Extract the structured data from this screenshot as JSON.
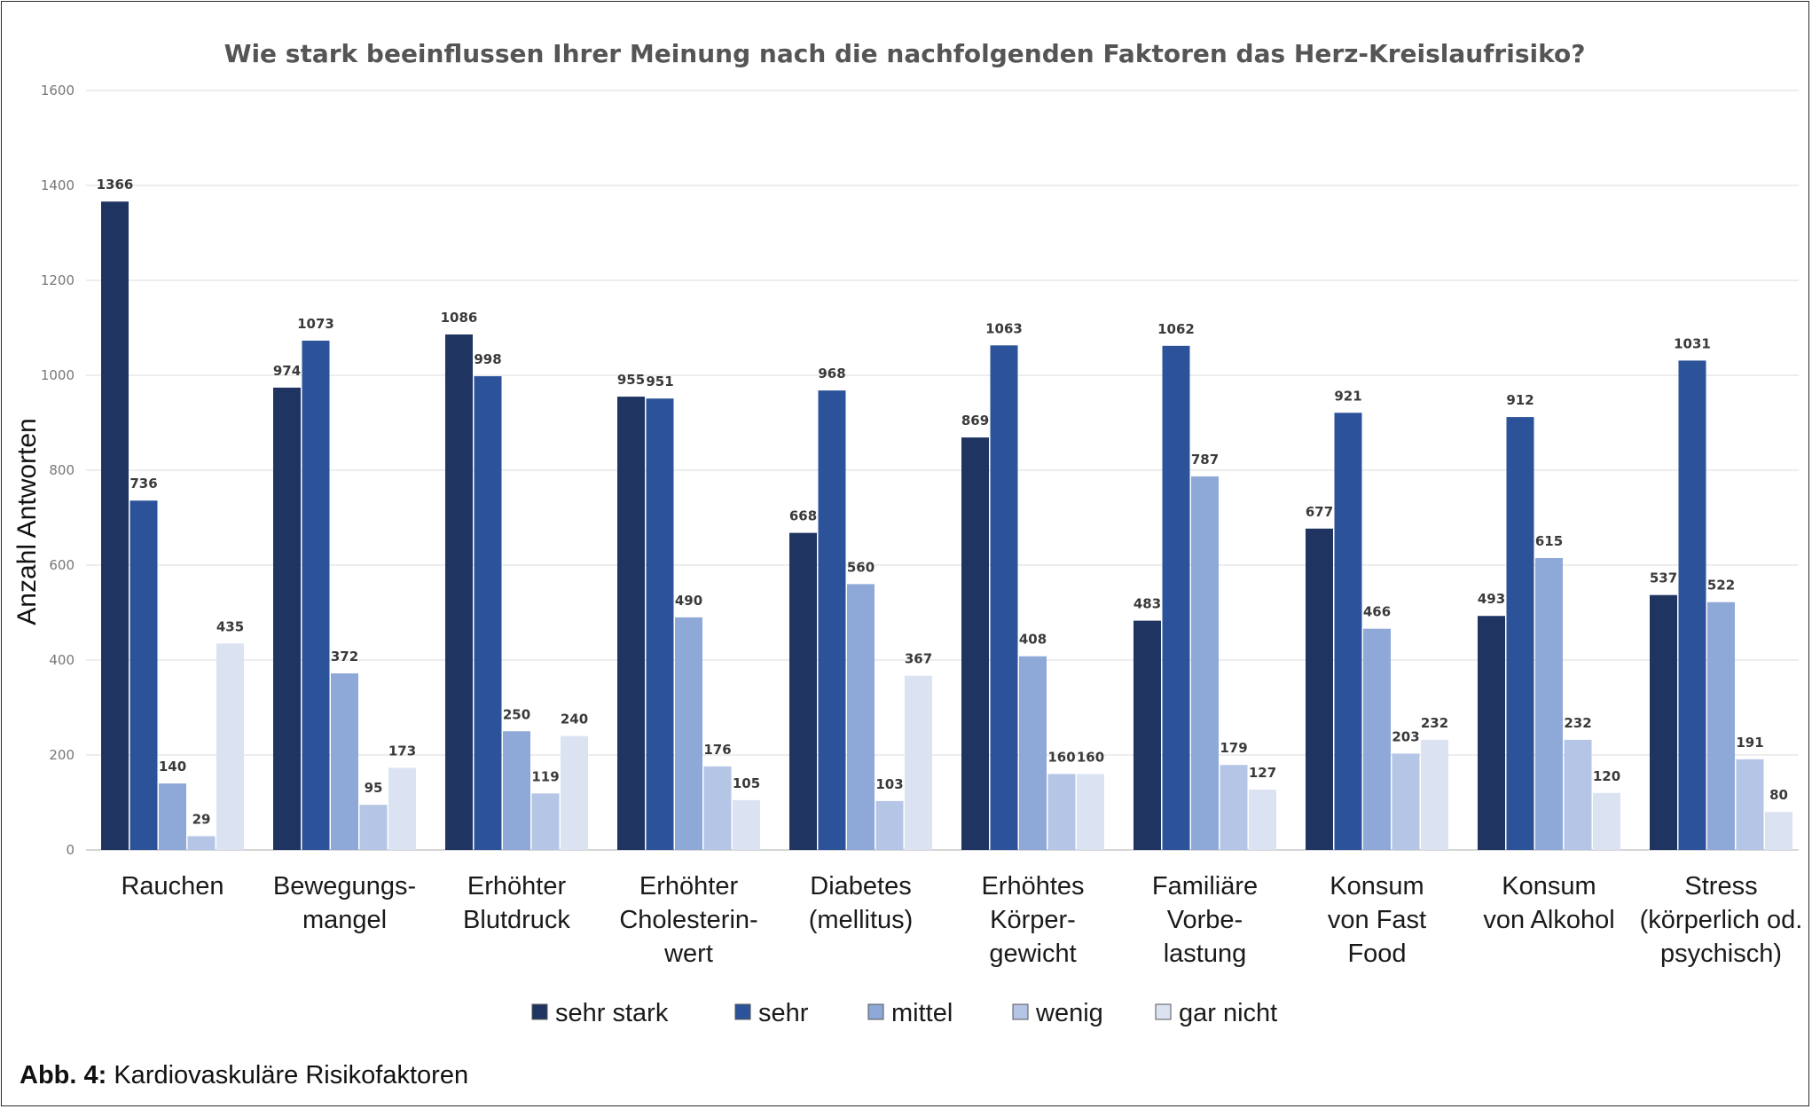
{
  "caption": {
    "label": "Abb. 4:",
    "text": "Kardiovaskuläre Risikofaktoren"
  },
  "chart_data": {
    "type": "bar",
    "title": "Wie stark beeinflussen Ihrer Meinung nach die nachfolgenden Faktoren das Herz-Kreislaufrisiko?",
    "ylabel": "Anzahl Antworten",
    "xlabel": "",
    "ylim": [
      0,
      1600
    ],
    "yticks": [
      0,
      200,
      400,
      600,
      800,
      1000,
      1200,
      1400,
      1600
    ],
    "grid": true,
    "legend_position": "bottom",
    "categories": [
      [
        "Rauchen"
      ],
      [
        "Bewegungs-",
        "mangel"
      ],
      [
        "Erhöhter",
        "Blutdruck"
      ],
      [
        "Erhöhter",
        "Cholesterin-",
        "wert"
      ],
      [
        "Diabetes",
        "(mellitus)"
      ],
      [
        "Erhöhtes",
        "Körper-",
        "gewicht"
      ],
      [
        "Familiäre",
        "Vorbe-",
        "lastung"
      ],
      [
        "Konsum",
        "von Fast",
        "Food"
      ],
      [
        "Konsum",
        "von Alkohol"
      ],
      [
        "Stress",
        "(körperlich od.",
        "psychisch)"
      ]
    ],
    "series": [
      {
        "name": "sehr stark",
        "color": "#1f3461",
        "values": [
          1366,
          974,
          1086,
          955,
          668,
          869,
          483,
          677,
          493,
          537
        ]
      },
      {
        "name": "sehr",
        "color": "#2c5399",
        "values": [
          736,
          1073,
          998,
          951,
          968,
          1063,
          1062,
          921,
          912,
          1031
        ]
      },
      {
        "name": "mittel",
        "color": "#8ea8d8",
        "values": [
          140,
          372,
          250,
          490,
          560,
          408,
          787,
          466,
          615,
          522
        ]
      },
      {
        "name": "wenig",
        "color": "#b5c5e6",
        "values": [
          29,
          95,
          119,
          176,
          103,
          160,
          179,
          203,
          232,
          191
        ]
      },
      {
        "name": "gar nicht",
        "color": "#dbe3f3",
        "values": [
          435,
          173,
          240,
          105,
          367,
          160,
          127,
          232,
          120,
          80
        ]
      }
    ]
  }
}
